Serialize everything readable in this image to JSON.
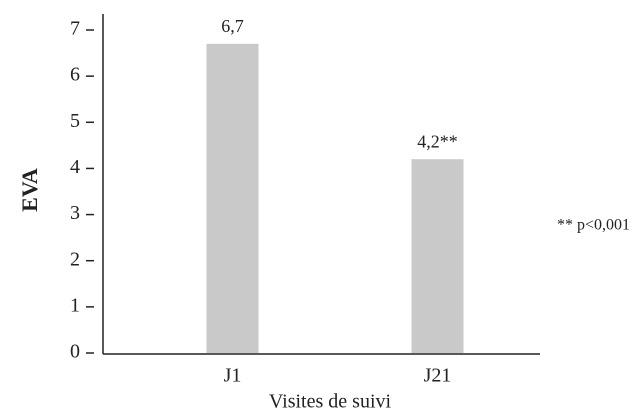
{
  "chart_data": {
    "type": "bar",
    "categories": [
      "J1",
      "J21"
    ],
    "values": [
      6.7,
      4.2
    ],
    "value_labels": [
      "6,7",
      "4,2**"
    ],
    "color": "#c9c9c9",
    "ylim": [
      0,
      7
    ],
    "yticks": [
      0,
      1,
      2,
      3,
      4,
      5,
      6,
      7
    ],
    "ylabel": "EVA",
    "xlabel": "Visites de suivi",
    "annotation": "** p<0,001"
  }
}
